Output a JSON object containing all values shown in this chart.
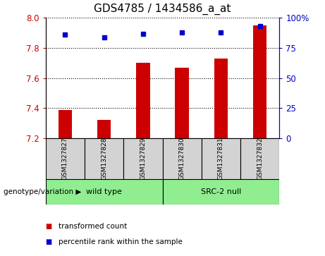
{
  "title": "GDS4785 / 1434586_a_at",
  "samples": [
    "GSM1327827",
    "GSM1327828",
    "GSM1327829",
    "GSM1327830",
    "GSM1327831",
    "GSM1327832"
  ],
  "bar_values": [
    7.39,
    7.32,
    7.7,
    7.67,
    7.73,
    7.95
  ],
  "percentile_values": [
    86,
    84,
    87,
    88,
    88,
    93
  ],
  "bar_color": "#cc0000",
  "dot_color": "#0000cc",
  "ylim_left": [
    7.2,
    8.0
  ],
  "ylim_right": [
    0,
    100
  ],
  "yticks_left": [
    7.2,
    7.4,
    7.6,
    7.8,
    8.0
  ],
  "yticks_right": [
    0,
    25,
    50,
    75,
    100
  ],
  "ytick_labels_right": [
    "0",
    "25",
    "50",
    "75",
    "100%"
  ],
  "groups": [
    {
      "label": "wild type",
      "indices": [
        0,
        1,
        2
      ],
      "color": "#90ee90"
    },
    {
      "label": "SRC-2 null",
      "indices": [
        3,
        4,
        5
      ],
      "color": "#90ee90"
    }
  ],
  "group_label_prefix": "genotype/variation",
  "legend_items": [
    {
      "color": "#cc0000",
      "label": "transformed count"
    },
    {
      "color": "#0000cc",
      "label": "percentile rank within the sample"
    }
  ],
  "bar_width": 0.35,
  "background_color": "#ffffff",
  "tick_label_box_color": "#d3d3d3",
  "grid_color": "#000000",
  "title_fontsize": 11,
  "tick_fontsize": 8.5,
  "label_fontsize": 8
}
